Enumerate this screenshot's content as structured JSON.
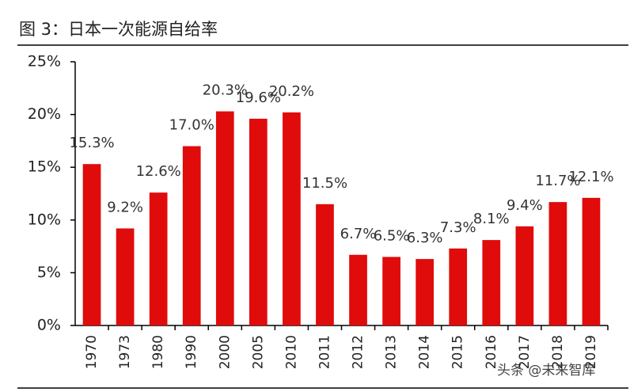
{
  "chart_data": {
    "type": "bar",
    "title": "图 3：日本一次能源自给率",
    "categories": [
      "1970",
      "1973",
      "1980",
      "1990",
      "2000",
      "2005",
      "2010",
      "2011",
      "2012",
      "2013",
      "2014",
      "2015",
      "2016",
      "2017",
      "2018",
      "2019"
    ],
    "values": [
      15.3,
      9.2,
      12.6,
      17.0,
      20.3,
      19.6,
      20.2,
      11.5,
      6.7,
      6.5,
      6.3,
      7.3,
      8.1,
      9.4,
      11.7,
      12.1
    ],
    "value_labels": [
      "15.3%",
      "9.2%",
      "12.6%",
      "17.0%",
      "20.3%",
      "19.6%",
      "20.2%",
      "11.5%",
      "6.7%",
      "6.5%",
      "6.3%",
      "7.3%",
      "8.1%",
      "9.4%",
      "11.7%",
      "12.1%"
    ],
    "color": "#e00b0b",
    "ylim": [
      0,
      25
    ],
    "yticks": [
      {
        "value": 0,
        "label": "0%"
      },
      {
        "value": 5,
        "label": "5%"
      },
      {
        "value": 10,
        "label": "10%"
      },
      {
        "value": 15,
        "label": "15%"
      },
      {
        "value": 20,
        "label": "20%"
      },
      {
        "value": 25,
        "label": "25%"
      }
    ],
    "grid": false,
    "watermark": "头条 @未来智库"
  }
}
